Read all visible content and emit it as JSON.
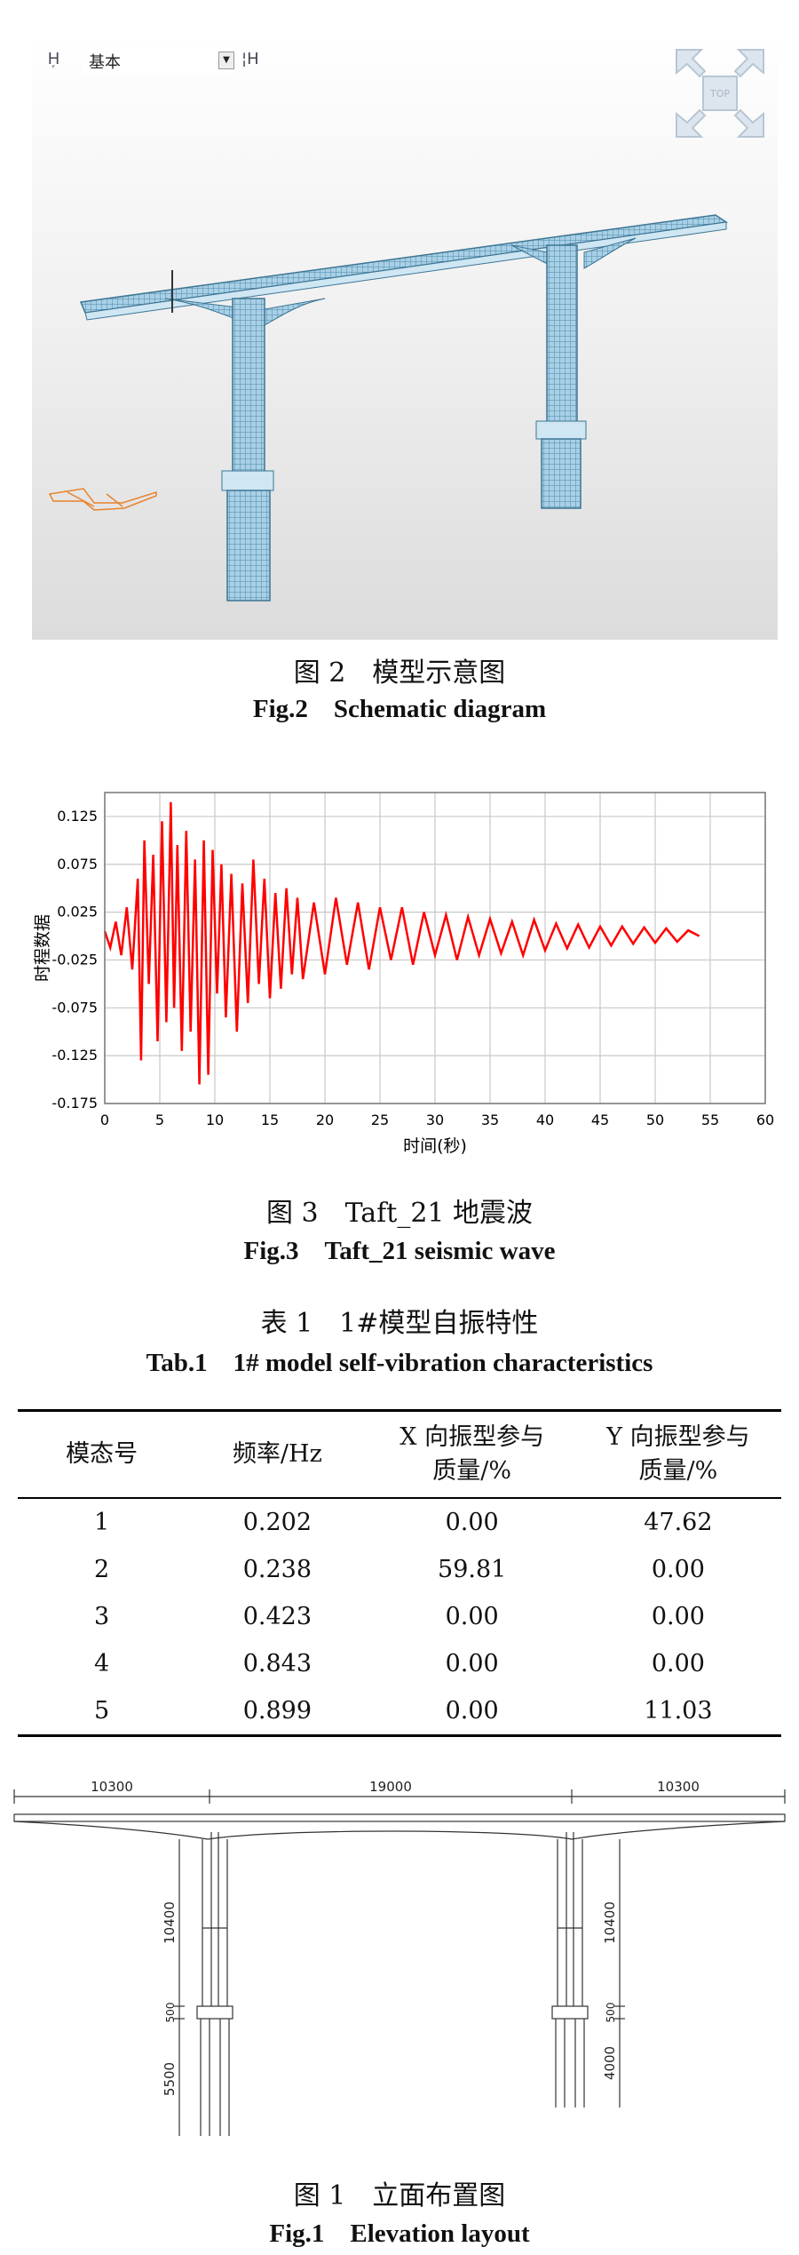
{
  "figure2": {
    "toolbar": {
      "layer_value": "基本",
      "viewcube_label": "TOP"
    },
    "caption_cn": "图 2　模型示意图",
    "caption_en": "Fig.2　Schematic diagram"
  },
  "figure3": {
    "caption_cn": "图 3　Taft_21 地震波",
    "caption_en": "Fig.3　Taft_21 seismic wave"
  },
  "chart_data": {
    "type": "line",
    "title": "",
    "xlabel": "时间(秒)",
    "ylabel": "时程数据",
    "xlim": [
      0,
      60
    ],
    "ylim": [
      -0.175,
      0.15
    ],
    "xticks": [
      0,
      5,
      10,
      15,
      20,
      25,
      30,
      35,
      40,
      45,
      50,
      55,
      60
    ],
    "yticks": [
      0.125,
      0.075,
      0.025,
      -0.025,
      -0.075,
      -0.125,
      -0.175
    ],
    "ytick_labels": [
      "0.125",
      "0.075",
      "0.025",
      "-0.025",
      "-0.075",
      "-0.125",
      "-0.175"
    ],
    "grid": true,
    "line_color": "#ff0000",
    "series": [
      {
        "x": [
          0,
          0.5,
          1,
          1.5,
          2,
          2.5,
          3,
          3.3,
          3.6,
          4,
          4.4,
          4.8,
          5.2,
          5.6,
          6,
          6.3,
          6.6,
          7,
          7.4,
          7.8,
          8.2,
          8.6,
          9,
          9.4,
          9.8,
          10.2,
          10.6,
          11,
          11.5,
          12,
          12.5,
          13,
          13.5,
          14,
          14.5,
          15,
          15.5,
          16,
          16.5,
          17,
          17.5,
          18,
          19,
          20,
          21,
          22,
          23,
          24,
          25,
          26,
          27,
          28,
          29,
          30,
          31,
          32,
          33,
          34,
          35,
          36,
          37,
          38,
          39,
          40,
          41,
          42,
          43,
          44,
          45,
          46,
          47,
          48,
          49,
          50,
          51,
          52,
          53,
          54
        ],
        "y": [
          0.005,
          -0.012,
          0.015,
          -0.02,
          0.03,
          -0.035,
          0.06,
          -0.13,
          0.1,
          -0.05,
          0.085,
          -0.11,
          0.12,
          -0.09,
          0.14,
          -0.075,
          0.095,
          -0.12,
          0.11,
          -0.1,
          0.08,
          -0.155,
          0.1,
          -0.145,
          0.09,
          -0.06,
          0.075,
          -0.085,
          0.065,
          -0.1,
          0.055,
          -0.07,
          0.08,
          -0.05,
          0.06,
          -0.065,
          0.045,
          -0.055,
          0.05,
          -0.04,
          0.04,
          -0.045,
          0.035,
          -0.04,
          0.04,
          -0.03,
          0.035,
          -0.035,
          0.03,
          -0.025,
          0.03,
          -0.03,
          0.025,
          -0.02,
          0.022,
          -0.025,
          0.02,
          -0.02,
          0.018,
          -0.018,
          0.015,
          -0.02,
          0.017,
          -0.015,
          0.013,
          -0.013,
          0.012,
          -0.012,
          0.01,
          -0.01,
          0.01,
          -0.008,
          0.009,
          -0.007,
          0.008,
          -0.006,
          0.006,
          0.0
        ]
      }
    ]
  },
  "table1": {
    "title_cn": "表 1　1#模型自振特性",
    "title_en": "Tab.1　1# model self-vibration characteristics",
    "headers": [
      "模态号",
      "频率/Hz",
      "X 向振型参与质量/%",
      "Y 向振型参与质量/%"
    ],
    "header_lines": {
      "h3": [
        "X 向振型参与",
        "质量/%"
      ],
      "h4": [
        "Y 向振型参与",
        "质量/%"
      ]
    },
    "rows": [
      [
        "1",
        "0.202",
        "0.00",
        "47.62"
      ],
      [
        "2",
        "0.238",
        "59.81",
        "0.00"
      ],
      [
        "3",
        "0.423",
        "0.00",
        "0.00"
      ],
      [
        "4",
        "0.843",
        "0.00",
        "0.00"
      ],
      [
        "5",
        "0.899",
        "0.00",
        "11.03"
      ]
    ]
  },
  "figure1": {
    "dims_top": [
      "10300",
      "19000",
      "10300"
    ],
    "dims_left": [
      "10400",
      "500",
      "5500"
    ],
    "dims_right": [
      "10400",
      "500",
      "4000"
    ],
    "caption_cn": "图 1　立面布置图",
    "caption_en": "Fig.1　Elevation layout"
  }
}
